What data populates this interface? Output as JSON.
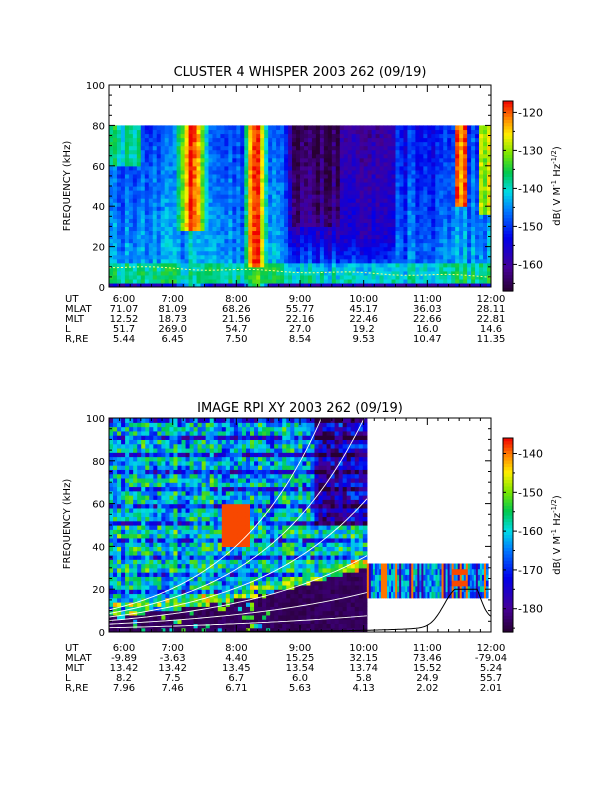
{
  "chart_data": [
    {
      "type": "heatmap",
      "title": "CLUSTER 4 WHISPER 2003 262 (09/19)",
      "ylabel": "FREQUENCY (kHz)",
      "ylim": [
        0,
        100
      ],
      "yticks": [
        "0",
        "20",
        "40",
        "60",
        "80",
        "100"
      ],
      "xlim": [
        "6:00",
        "12:00"
      ],
      "colorbar": {
        "label": "dB( V M",
        "label_sup1": "-1",
        "label_mid": " Hz",
        "label_sup2": "-1/2",
        "label_end": ")",
        "range": [
          -167,
          -117
        ],
        "ticks": [
          "-120",
          "-130",
          "-140",
          "-150",
          "-160"
        ],
        "tick_values": [
          -120,
          -130,
          -140,
          -150,
          -160
        ]
      },
      "data_extent_khz": 80,
      "grid": false,
      "ephemeris": {
        "labels": [
          "UT",
          "MLAT",
          "MLT",
          "L",
          "R,RE"
        ],
        "columns": [
          {
            "ut": "6:00",
            "mlat": "71.07",
            "mlt": "12.52",
            "l": "51.7",
            "rre": "5.44"
          },
          {
            "ut": "7:00",
            "mlat": "81.09",
            "mlt": "18.73",
            "l": "269.0",
            "rre": "6.45"
          },
          {
            "ut": "8:00",
            "mlat": "68.26",
            "mlt": "21.56",
            "l": "54.7",
            "rre": "7.50"
          },
          {
            "ut": "9:00",
            "mlat": "55.77",
            "mlt": "22.16",
            "l": "27.0",
            "rre": "8.54"
          },
          {
            "ut": "10:00",
            "mlat": "45.17",
            "mlt": "22.46",
            "l": "19.2",
            "rre": "9.53"
          },
          {
            "ut": "11:00",
            "mlat": "36.03",
            "mlt": "22.66",
            "l": "16.0",
            "rre": "10.47"
          },
          {
            "ut": "12:00",
            "mlat": "28.11",
            "mlt": "22.81",
            "l": "14.6",
            "rre": "11.35"
          }
        ]
      }
    },
    {
      "type": "heatmap",
      "title": "IMAGE RPI XY 2003 262 (09/19)",
      "ylabel": "FREQUENCY (kHz)",
      "ylim": [
        0,
        100
      ],
      "yticks": [
        "0",
        "20",
        "40",
        "60",
        "80",
        "100"
      ],
      "xlim": [
        "6:00",
        "12:00"
      ],
      "colorbar": {
        "label": "dB( V M",
        "label_sup1": "-1",
        "label_mid": " Hz",
        "label_sup2": "-1/2",
        "label_end": ")",
        "range": [
          -186,
          -136
        ],
        "ticks": [
          "-140",
          "-150",
          "-160",
          "-170",
          "-180"
        ],
        "tick_values": [
          -140,
          -150,
          -160,
          -170,
          -180
        ]
      },
      "grid": false,
      "ephemeris": {
        "labels": [
          "UT",
          "MLAT",
          "MLT",
          "L",
          "R,RE"
        ],
        "columns": [
          {
            "ut": "6:00",
            "mlat": "-9.89",
            "mlt": "13.42",
            "l": "8.2",
            "rre": "7.96"
          },
          {
            "ut": "7:00",
            "mlat": "-3.63",
            "mlt": "13.42",
            "l": "7.5",
            "rre": "7.46"
          },
          {
            "ut": "8:00",
            "mlat": "4.40",
            "mlt": "13.45",
            "l": "6.7",
            "rre": "6.71"
          },
          {
            "ut": "9:00",
            "mlat": "15.25",
            "mlt": "13.54",
            "l": "6.0",
            "rre": "5.63"
          },
          {
            "ut": "10:00",
            "mlat": "32.15",
            "mlt": "13.74",
            "l": "5.8",
            "rre": "4.13"
          },
          {
            "ut": "11:00",
            "mlat": "73.46",
            "mlt": "15.52",
            "l": "24.9",
            "rre": "2.02"
          },
          {
            "ut": "12:00",
            "mlat": "-79.04",
            "mlt": "5.24",
            "l": "55.7",
            "rre": "2.01"
          }
        ]
      }
    }
  ]
}
